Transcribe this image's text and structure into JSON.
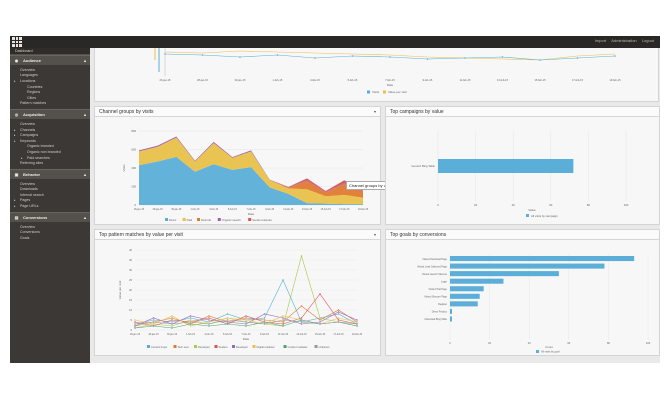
{
  "topbar": {
    "links": [
      "Import",
      "Administration",
      "Logout"
    ]
  },
  "sidebar": {
    "top_item": "Dashboard",
    "groups": [
      {
        "label": "Audience",
        "icon": "audience-icon",
        "items": [
          {
            "label": "Overview",
            "level": 1
          },
          {
            "label": "Languages",
            "level": 1
          },
          {
            "label": "Locations",
            "level": 1,
            "bullet": true
          },
          {
            "label": "Countries",
            "level": 2
          },
          {
            "label": "Regions",
            "level": 2
          },
          {
            "label": "Cities",
            "level": 2
          },
          {
            "label": "Pattern matches",
            "level": 1
          }
        ]
      },
      {
        "label": "Acquisition",
        "icon": "acquisition-icon",
        "items": [
          {
            "label": "Overview",
            "level": 1
          },
          {
            "label": "Channels",
            "level": 1,
            "bullet": true
          },
          {
            "label": "Campaigns",
            "level": 1,
            "bullet": true
          },
          {
            "label": "Keywords",
            "level": 1,
            "bullet": true
          },
          {
            "label": "Organic branded",
            "level": 2
          },
          {
            "label": "Organic non branded",
            "level": 2
          },
          {
            "label": "Paid searches",
            "level": 2,
            "bullet": true
          },
          {
            "label": "Referring sites",
            "level": 1
          }
        ]
      },
      {
        "label": "Behavior",
        "icon": "behavior-icon",
        "items": [
          {
            "label": "Overview",
            "level": 1
          },
          {
            "label": "Downloads",
            "level": 1
          },
          {
            "label": "Internal search",
            "level": 1
          },
          {
            "label": "Pages",
            "level": 1,
            "bullet": true
          },
          {
            "label": "Page URLs",
            "level": 1,
            "bullet": true
          }
        ]
      },
      {
        "label": "Conversions",
        "icon": "conversions-icon",
        "items": [
          {
            "label": "Overview",
            "level": 1
          },
          {
            "label": "Conversions",
            "level": 1
          },
          {
            "label": "Goals",
            "level": 1
          }
        ]
      }
    ]
  },
  "panels": {
    "top_chart": {
      "xlabel": "Date",
      "legend": [
        "Visits",
        "Value per visit"
      ],
      "ticks": [
        "26-jan-15",
        "28-jan-15",
        "30-jan-15",
        "1-feb-15",
        "3-feb-15",
        "5-feb-15",
        "7-feb-15",
        "9-feb-15",
        "11-feb-15",
        "13-feb-15",
        "15-feb-15",
        "17-feb-15",
        "19-feb-15"
      ]
    },
    "channel_groups": {
      "title": "Channel groups by visits",
      "tooltip": "Channel groups by visits",
      "ylabel": "Visits",
      "xlabel": "Date",
      "legend": [
        "Direct",
        "Paid",
        "Referral",
        "Organic search",
        "Social networks"
      ]
    },
    "top_campaigns": {
      "title": "Top campaigns by value",
      "xlabel": "Value",
      "legend": [
        "All visits by campaign"
      ]
    },
    "pattern_matches": {
      "title": "Top pattern matches by value per visit",
      "ylabel": "Value per visit",
      "xlabel": "Date",
      "legend": [
        "Content buyer",
        "Tech user",
        "Developer",
        "Student",
        "Developer",
        "Digital marketer",
        "Content marketer",
        "Unknown"
      ]
    },
    "top_goals": {
      "title": "Top goals by conversions",
      "xlabel": "Count",
      "legend": [
        "All visits by goal"
      ]
    }
  },
  "chart_data": [
    {
      "type": "area",
      "title": "Channel groups by visits",
      "ylabel": "Visits",
      "xlabel": "Date",
      "ylim": [
        0,
        800
      ],
      "categories": [
        "26-jan-15",
        "28-jan-15",
        "30-jan-15",
        "1-feb-15",
        "3-feb-15",
        "5-feb-15",
        "7-feb-15",
        "9-feb-15",
        "11-feb-15",
        "13-feb-15",
        "15-feb-15",
        "17-feb-15",
        "19-feb-15"
      ],
      "series": [
        {
          "name": "Direct",
          "color": "#5aaed8",
          "values": [
            430,
            470,
            520,
            360,
            440,
            380,
            410,
            190,
            120,
            20,
            15,
            10,
            10
          ]
        },
        {
          "name": "Paid",
          "color": "#e9c14a",
          "values": [
            150,
            160,
            210,
            110,
            230,
            130,
            170,
            80,
            60,
            150,
            80,
            100,
            70
          ]
        },
        {
          "name": "Referral",
          "color": "#e07a30",
          "values": [
            0,
            0,
            0,
            0,
            0,
            0,
            0,
            0,
            10,
            90,
            40,
            120,
            60
          ]
        },
        {
          "name": "Organic search",
          "color": "#a35aa8",
          "values": [
            10,
            12,
            10,
            8,
            12,
            8,
            10,
            5,
            6,
            8,
            6,
            8,
            6
          ]
        },
        {
          "name": "Social networks",
          "color": "#d9534f",
          "values": [
            0,
            0,
            0,
            0,
            0,
            0,
            0,
            0,
            0,
            20,
            10,
            30,
            10
          ]
        }
      ]
    },
    {
      "type": "bar",
      "title": "Top campaigns by value",
      "orientation": "horizontal",
      "categories": [
        "Generic Bing Table"
      ],
      "values": [
        72
      ],
      "xlim": [
        0,
        100
      ],
      "xlabel": "Value"
    },
    {
      "type": "line",
      "title": "Top pattern matches by value per visit",
      "ylabel": "Value per visit",
      "xlabel": "Date",
      "ylim": [
        0,
        40
      ],
      "categories": [
        "26-jan-15",
        "28-jan-15",
        "30-jan-15",
        "1-feb-15",
        "3-feb-15",
        "5-feb-15",
        "7-feb-15",
        "9-feb-15",
        "11-feb-15",
        "13-feb-15",
        "15-feb-15",
        "17-feb-15",
        "19-feb-15"
      ],
      "series": [
        {
          "name": "Content buyer",
          "color": "#5aaed8",
          "values": [
            3,
            5,
            4,
            6,
            4,
            8,
            5,
            6,
            25,
            4,
            6,
            8,
            3
          ]
        },
        {
          "name": "Tech user",
          "color": "#e07a30",
          "values": [
            2,
            4,
            6,
            3,
            7,
            4,
            6,
            5,
            4,
            12,
            5,
            10,
            4
          ]
        },
        {
          "name": "Developer",
          "color": "#a8c94a",
          "values": [
            1,
            3,
            2,
            5,
            3,
            6,
            4,
            3,
            2,
            37,
            6,
            4,
            2
          ]
        },
        {
          "name": "Student",
          "color": "#d9534f",
          "values": [
            4,
            2,
            5,
            4,
            6,
            3,
            7,
            4,
            3,
            6,
            18,
            5,
            3
          ]
        },
        {
          "name": "Developer",
          "color": "#8e6cc2",
          "values": [
            2,
            6,
            3,
            7,
            5,
            4,
            3,
            8,
            6,
            3,
            4,
            9,
            5
          ]
        },
        {
          "name": "Digital marketer",
          "color": "#e9c14a",
          "values": [
            5,
            3,
            7,
            2,
            4,
            6,
            5,
            3,
            7,
            5,
            3,
            6,
            4
          ]
        },
        {
          "name": "Content marketer",
          "color": "#4aa37a",
          "values": [
            1,
            2,
            1,
            3,
            2,
            3,
            2,
            4,
            2,
            5,
            3,
            4,
            2
          ]
        },
        {
          "name": "Unknown",
          "color": "#999999",
          "values": [
            3,
            4,
            3,
            4,
            3,
            5,
            4,
            3,
            5,
            4,
            3,
            4,
            3
          ]
        }
      ]
    },
    {
      "type": "bar",
      "title": "Top goals by conversions",
      "orientation": "horizontal",
      "categories": [
        "Visited Download Page",
        "Visited Lead Gathered Page",
        "Visited Launch Sitecore",
        "Login",
        "Visited Trial Page",
        "Visited Sitecore Page",
        "Register",
        "Demo Product",
        "Download Bing Table"
      ],
      "values": [
        93,
        78,
        55,
        27,
        17,
        15,
        14,
        1,
        1
      ],
      "xlim": [
        0,
        100
      ],
      "xlabel": "Count"
    }
  ]
}
